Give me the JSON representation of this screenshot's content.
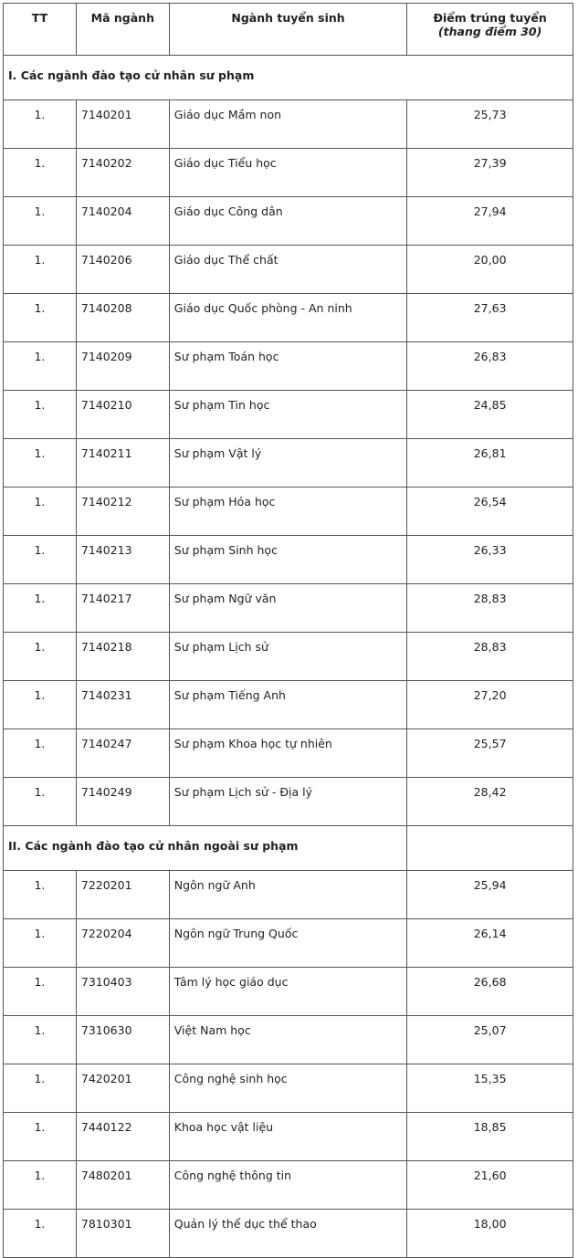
{
  "headers": {
    "tt": "TT",
    "code": "Mã ngành",
    "major": "Ngành tuyển sinh",
    "score": "Điểm trúng tuyển",
    "score_note": "(thang điểm 30)"
  },
  "sections": [
    {
      "title": "I. Các ngành đào tạo cử nhân sư phạm",
      "rows": [
        {
          "tt": "1.",
          "code": "7140201",
          "major": "Giáo dục Mầm non",
          "score": "25,73"
        },
        {
          "tt": "1.",
          "code": "7140202",
          "major": "Giáo dục Tiểu học",
          "score": "27,39"
        },
        {
          "tt": "1.",
          "code": "7140204",
          "major": "Giáo dục Công dân",
          "score": "27,94"
        },
        {
          "tt": "1.",
          "code": "7140206",
          "major": "Giáo dục Thể chất",
          "score": "20,00"
        },
        {
          "tt": "1.",
          "code": "7140208",
          "major": "Giáo dục Quốc phòng - An ninh",
          "score": "27,63"
        },
        {
          "tt": "1.",
          "code": "7140209",
          "major": "Sư phạm Toán học",
          "score": "26,83"
        },
        {
          "tt": "1.",
          "code": "7140210",
          "major": "Sư phạm Tin học",
          "score": "24,85"
        },
        {
          "tt": "1.",
          "code": "7140211",
          "major": "Sư phạm Vật lý",
          "score": "26,81"
        },
        {
          "tt": "1.",
          "code": "7140212",
          "major": "Sư phạm Hóa học",
          "score": "26,54"
        },
        {
          "tt": "1.",
          "code": "7140213",
          "major": "Sư phạm Sinh học",
          "score": "26,33"
        },
        {
          "tt": "1.",
          "code": "7140217",
          "major": "Sư phạm Ngữ văn",
          "score": "28,83"
        },
        {
          "tt": "1.",
          "code": "7140218",
          "major": "Sư phạm Lịch sử",
          "score": "28,83"
        },
        {
          "tt": "1.",
          "code": "7140231",
          "major": "Sư phạm Tiếng Anh",
          "score": "27,20"
        },
        {
          "tt": "1.",
          "code": "7140247",
          "major": "Sư phạm Khoa học tự nhiên",
          "score": "25,57"
        },
        {
          "tt": "1.",
          "code": "7140249",
          "major": "Sư phạm Lịch sử - Địa lý",
          "score": "28,42"
        }
      ]
    },
    {
      "title": "II. Các ngành đào tạo cử nhân ngoài sư phạm",
      "rows": [
        {
          "tt": "1.",
          "code": "7220201",
          "major": "Ngôn ngữ Anh",
          "score": "25,94"
        },
        {
          "tt": "1.",
          "code": "7220204",
          "major": "Ngôn ngữ Trung Quốc",
          "score": "26,14"
        },
        {
          "tt": "1.",
          "code": "7310403",
          "major": "Tâm lý học giáo dục",
          "score": "26,68"
        },
        {
          "tt": "1.",
          "code": "7310630",
          "major": "Việt Nam học",
          "score": "25,07"
        },
        {
          "tt": "1.",
          "code": "7420201",
          "major": "Công nghệ sinh học",
          "score": "15,35"
        },
        {
          "tt": "1.",
          "code": "7440122",
          "major": "Khoa học vật liệu",
          "score": "18,85"
        },
        {
          "tt": "1.",
          "code": "7480201",
          "major": "Công nghệ thông tin",
          "score": "21,60"
        },
        {
          "tt": "1.",
          "code": "7810301",
          "major": "Quản lý thể dục thể thao",
          "score": "18,00"
        }
      ]
    }
  ]
}
